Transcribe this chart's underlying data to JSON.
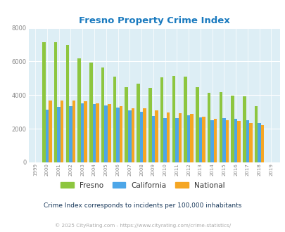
{
  "title": "Fresno Property Crime Index",
  "subtitle": "Crime Index corresponds to incidents per 100,000 inhabitants",
  "footer": "© 2025 CityRating.com - https://www.cityrating.com/crime-statistics/",
  "years": [
    1999,
    2000,
    2001,
    2002,
    2003,
    2004,
    2005,
    2006,
    2007,
    2008,
    2009,
    2010,
    2011,
    2012,
    2013,
    2014,
    2015,
    2016,
    2017,
    2018,
    2019
  ],
  "fresno": [
    0,
    7150,
    7150,
    6980,
    6200,
    5930,
    5630,
    5100,
    4490,
    4680,
    4440,
    5060,
    5140,
    5120,
    4460,
    4130,
    4180,
    3950,
    3920,
    3340,
    0
  ],
  "california": [
    0,
    3150,
    3300,
    3350,
    3500,
    3450,
    3400,
    3280,
    3080,
    3000,
    2740,
    2630,
    2620,
    2780,
    2680,
    2490,
    2650,
    2590,
    2490,
    2340,
    0
  ],
  "national": [
    0,
    3670,
    3680,
    3680,
    3650,
    3520,
    3470,
    3340,
    3230,
    3220,
    3100,
    2960,
    2930,
    2900,
    2730,
    2590,
    2490,
    2450,
    2360,
    2200,
    0
  ],
  "fresno_color": "#8dc63f",
  "california_color": "#4da6e8",
  "national_color": "#f5a623",
  "bg_color": "#ddeef5",
  "ylim": [
    0,
    8000
  ],
  "yticks": [
    0,
    2000,
    4000,
    6000,
    8000
  ],
  "title_color": "#1a7abf",
  "subtitle_color": "#1a3a5c",
  "footer_color": "#aaaaaa",
  "footer_link_color": "#4da6e8"
}
